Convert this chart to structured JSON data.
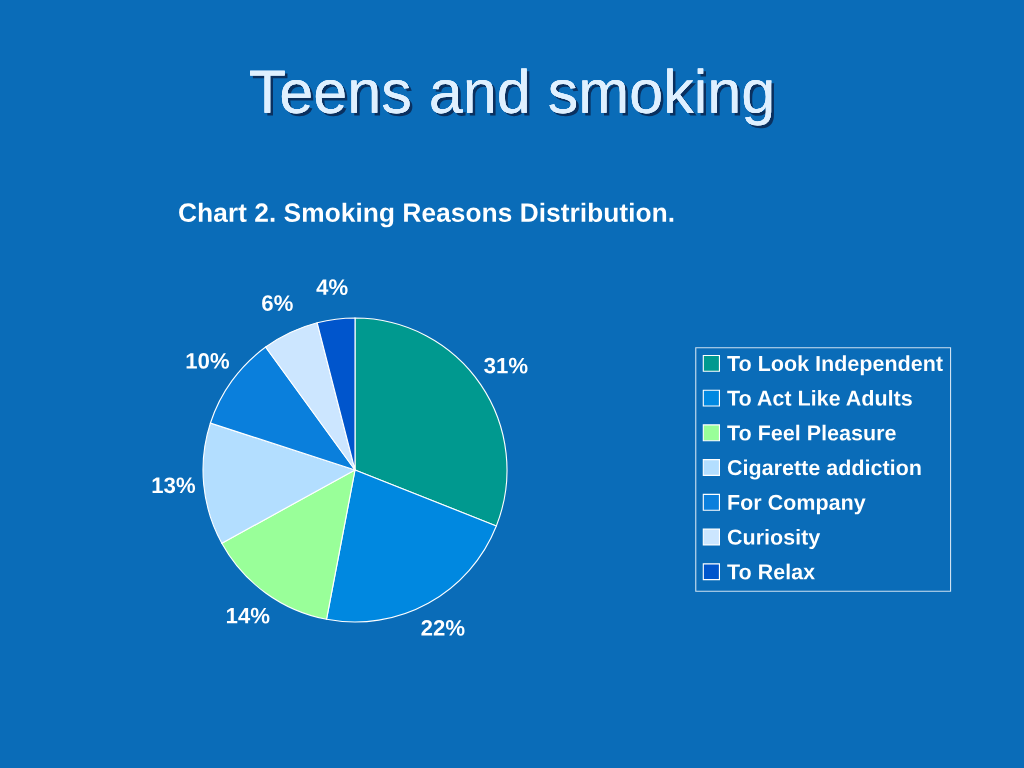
{
  "chart_data": {
    "type": "pie",
    "title": "Teens and smoking",
    "subtitle": "Chart 2. Smoking Reasons Distribution.",
    "categories": [
      "To Look Independent",
      "To Act Like Adults",
      "To Feel Pleasure",
      "Cigarette addiction",
      "For Company",
      "Curiosity",
      "To Relax"
    ],
    "values": [
      31,
      22,
      14,
      13,
      10,
      6,
      4
    ],
    "value_labels": [
      "31%",
      "22%",
      "14%",
      "13%",
      "10%",
      "6%",
      "4%"
    ],
    "colors": [
      "#00998f",
      "#0088e0",
      "#99ff99",
      "#b3deff",
      "#0a7fdc",
      "#cce6ff",
      "#0055cc"
    ],
    "legend": "right"
  }
}
